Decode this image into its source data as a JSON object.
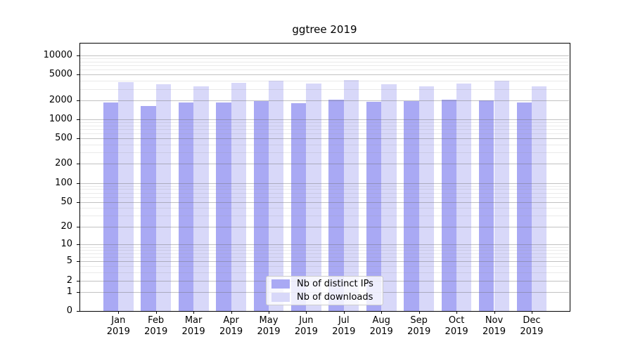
{
  "figure": {
    "title": "ggtree 2019"
  },
  "chart_data": {
    "type": "bar",
    "title": "ggtree 2019",
    "x_categories": [
      "Jan",
      "Feb",
      "Mar",
      "Apr",
      "May",
      "Jun",
      "Jul",
      "Aug",
      "Sep",
      "Oct",
      "Nov",
      "Dec"
    ],
    "x_year_label": "2019",
    "series": [
      {
        "name": "Nb of distinct IPs",
        "color": "#a9a9f4",
        "values": [
          1850,
          1600,
          1850,
          1840,
          1915,
          1800,
          2050,
          1880,
          1920,
          2050,
          1970,
          1820
        ]
      },
      {
        "name": "Nb of downloads",
        "color": "#d8d8f9",
        "values": [
          3850,
          3500,
          3300,
          3730,
          4000,
          3600,
          4100,
          3550,
          3310,
          3650,
          4050,
          3260
        ]
      }
    ],
    "yscale": "log1p",
    "ylim": [
      0,
      15750
    ],
    "yticks": [
      0,
      1,
      2,
      5,
      10,
      20,
      50,
      100,
      200,
      500,
      1000,
      2000,
      5000,
      10000
    ],
    "yticks_minor": [
      3,
      4,
      6,
      7,
      8,
      9,
      30,
      40,
      60,
      70,
      80,
      90,
      300,
      400,
      600,
      700,
      800,
      900,
      3000,
      4000,
      6000,
      7000,
      8000,
      9000
    ],
    "grid": true,
    "legend": {
      "position": "lower-center",
      "entries": [
        "Nb of distinct IPs",
        "Nb of downloads"
      ]
    }
  }
}
